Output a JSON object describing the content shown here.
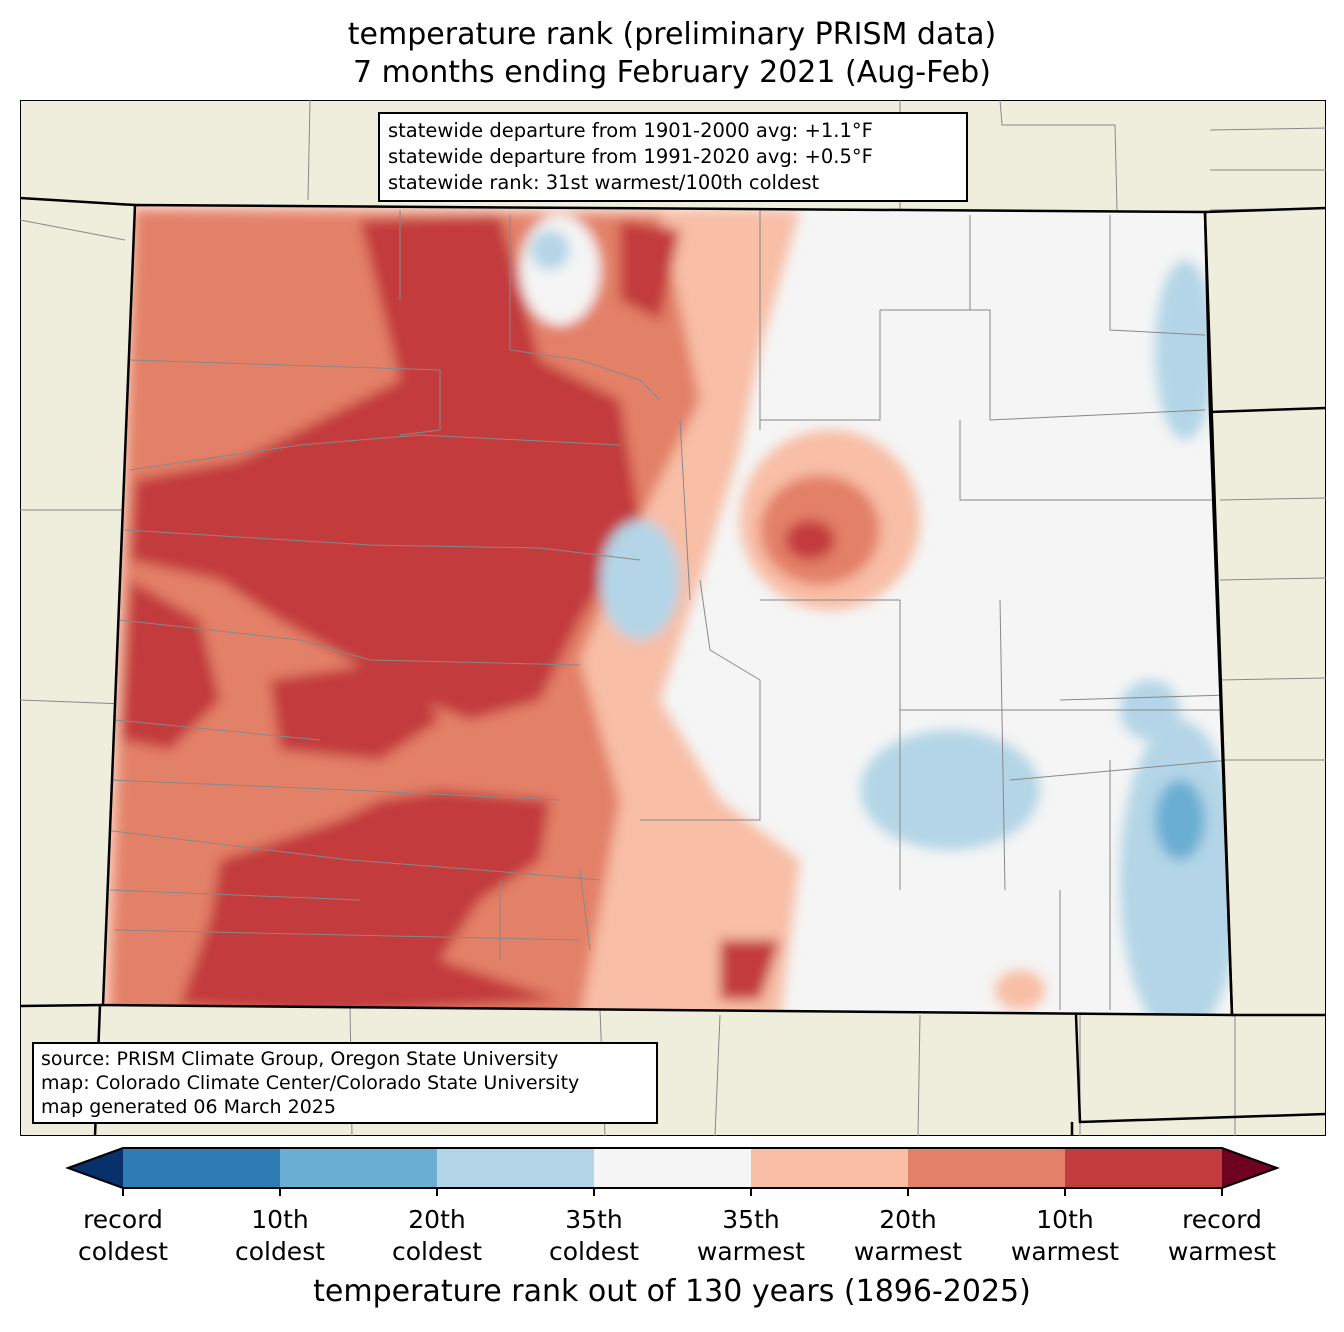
{
  "title": {
    "line1": "temperature rank (preliminary PRISM data)",
    "line2": "7 months ending February 2021 (Aug-Feb)"
  },
  "info_box": [
    "statewide departure from 1901-2000 avg: +1.1°F",
    "statewide departure from 1991-2020 avg: +0.5°F",
    "statewide rank: 31st warmest/100th coldest"
  ],
  "source_box": [
    "source: PRISM Climate Group, Oregon State University",
    "map: Colorado Climate Center/Colorado State University",
    "map generated 06 March 2025"
  ],
  "colorbar": {
    "label": "temperature rank out of 130 years (1896-2025)",
    "colors": [
      "#08306b",
      "#2f7bb6",
      "#6aaed3",
      "#b3d5e7",
      "#f5f5f5",
      "#f8bea6",
      "#e38068",
      "#c33b3d",
      "#6e0220"
    ],
    "ticks": [
      {
        "l1": "record",
        "l2": "coldest"
      },
      {
        "l1": "10th",
        "l2": "coldest"
      },
      {
        "l1": "20th",
        "l2": "coldest"
      },
      {
        "l1": "35th",
        "l2": "coldest"
      },
      {
        "l1": "35th",
        "l2": "warmest"
      },
      {
        "l1": "20th",
        "l2": "warmest"
      },
      {
        "l1": "10th",
        "l2": "warmest"
      },
      {
        "l1": "record",
        "l2": "warmest"
      }
    ]
  },
  "map_colors": {
    "background": "#efeedd",
    "state": "#f5f5f5"
  }
}
